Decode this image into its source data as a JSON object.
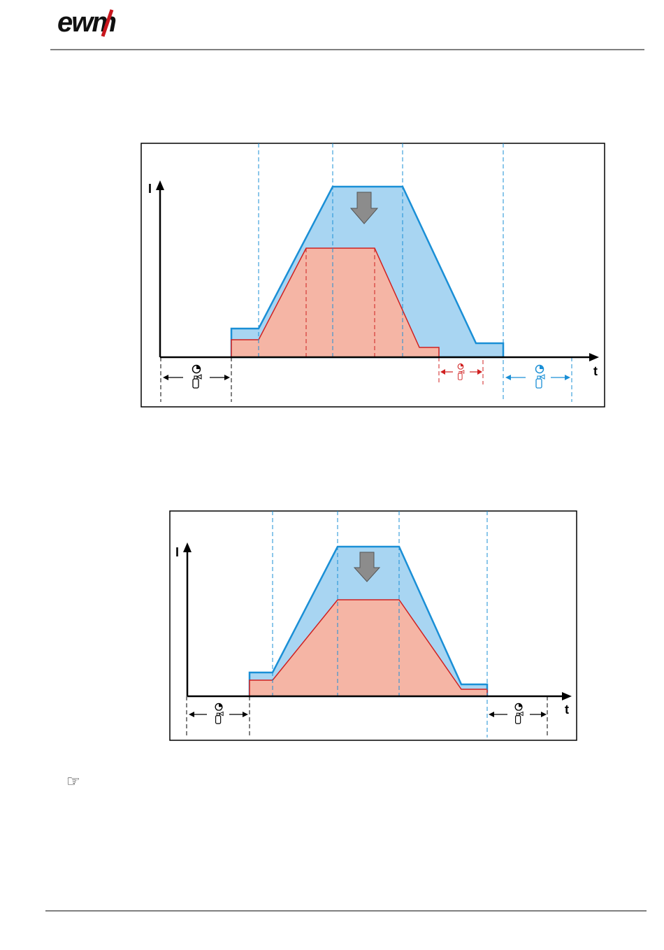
{
  "header": {
    "logo": "ewm"
  },
  "figures": [
    {
      "y_axis_label": "I",
      "x_axis_label": "t"
    },
    {
      "y_axis_label": "I",
      "x_axis_label": "t"
    }
  ],
  "note": {
    "icon": "☞"
  }
}
